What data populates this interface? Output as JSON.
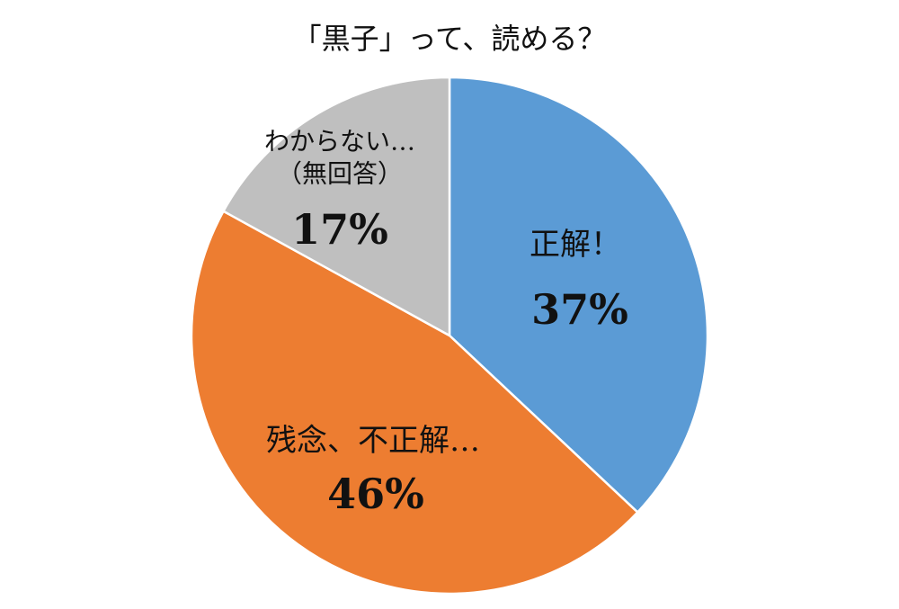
{
  "chart_data": {
    "type": "pie",
    "title": "「黒子」って、読める？",
    "categories": [
      "正解！",
      "残念、不正解…",
      "わからない…\n（無回答）"
    ],
    "values": [
      37,
      46,
      17
    ],
    "value_labels": [
      "37%",
      "46%",
      "17%"
    ],
    "colors": [
      "#5b9bd5",
      "#ed7d31",
      "#bfbfbf"
    ]
  }
}
